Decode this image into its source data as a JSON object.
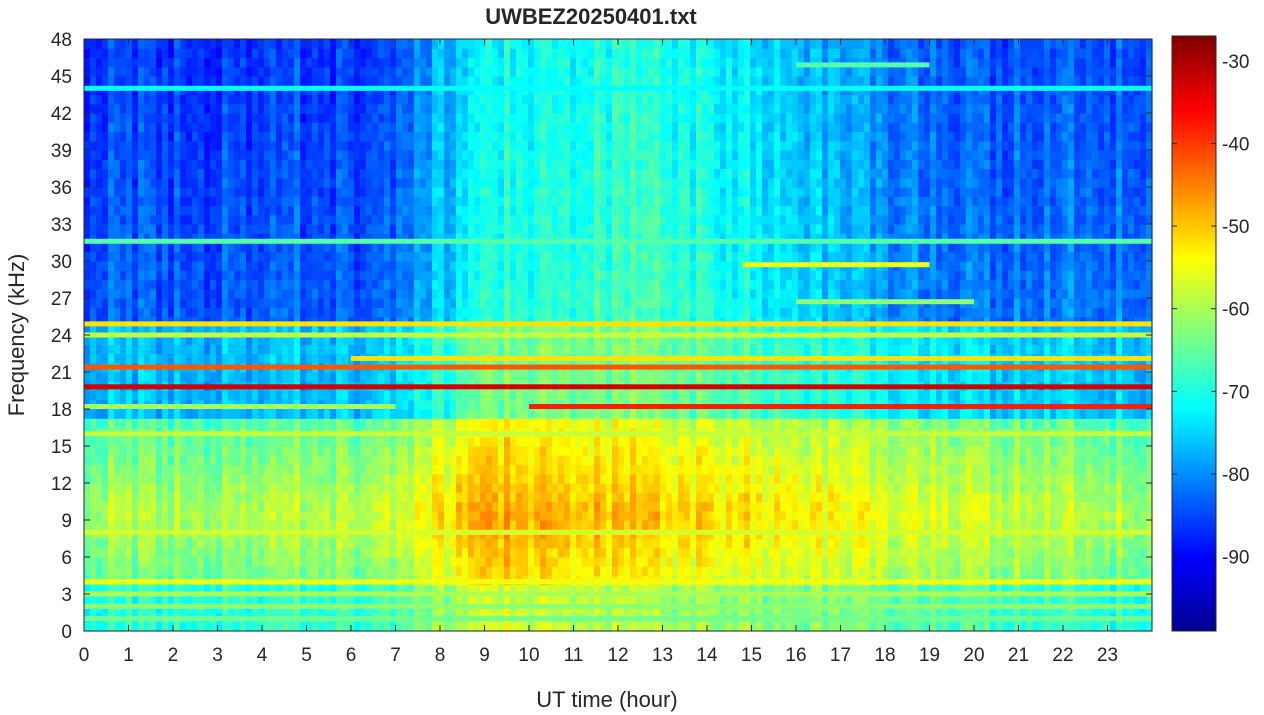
{
  "chart_data": {
    "type": "heatmap",
    "title": "UWBEZ20250401.txt",
    "xlabel": "UT time (hour)",
    "ylabel": "Frequency (kHz)",
    "xlim": [
      0,
      24
    ],
    "ylim": [
      0,
      48
    ],
    "x_ticks": [
      "0",
      "1",
      "2",
      "3",
      "4",
      "5",
      "6",
      "7",
      "8",
      "9",
      "10",
      "11",
      "12",
      "13",
      "14",
      "15",
      "16",
      "17",
      "18",
      "19",
      "20",
      "21",
      "22",
      "23"
    ],
    "y_ticks": [
      "0",
      "3",
      "6",
      "9",
      "12",
      "15",
      "18",
      "21",
      "24",
      "27",
      "30",
      "33",
      "36",
      "39",
      "42",
      "45",
      "48"
    ],
    "colorbar": {
      "colormap": "jet",
      "range": [
        -99,
        -27
      ],
      "ticks": [
        "-30",
        "-40",
        "-50",
        "-60",
        "-70",
        "-80",
        "-90"
      ]
    },
    "background_spectrum": {
      "description_hours": [
        0,
        6.7,
        9.2,
        13,
        19.3,
        24
      ],
      "high_freq_level_dB": [
        -86,
        -86,
        -72,
        -70,
        -84,
        -84
      ],
      "low_freq_level_dB": [
        -60,
        -58,
        -47,
        -50,
        -56,
        -60
      ]
    },
    "tone_lines": [
      {
        "freq_khz": 19.8,
        "start_hour": 0,
        "end_hour": 24,
        "level_dB": -33
      },
      {
        "freq_khz": 21.4,
        "start_hour": 0,
        "end_hour": 24,
        "level_dB": -42
      },
      {
        "freq_khz": 18.2,
        "start_hour": 10,
        "end_hour": 24,
        "level_dB": -38
      },
      {
        "freq_khz": 18.2,
        "start_hour": 0,
        "end_hour": 7,
        "level_dB": -60
      },
      {
        "freq_khz": 24.9,
        "start_hour": 0,
        "end_hour": 24,
        "level_dB": -52
      },
      {
        "freq_khz": 24.0,
        "start_hour": 0,
        "end_hour": 24,
        "level_dB": -58
      },
      {
        "freq_khz": 22.1,
        "start_hour": 6,
        "end_hour": 24,
        "level_dB": -52
      },
      {
        "freq_khz": 31.6,
        "start_hour": 0,
        "end_hour": 24,
        "level_dB": -66
      },
      {
        "freq_khz": 29.7,
        "start_hour": 14.8,
        "end_hour": 19,
        "level_dB": -55
      },
      {
        "freq_khz": 26.7,
        "start_hour": 16,
        "end_hour": 20,
        "level_dB": -62
      },
      {
        "freq_khz": 45.9,
        "start_hour": 16,
        "end_hour": 19,
        "level_dB": -66
      },
      {
        "freq_khz": 44.0,
        "start_hour": 0,
        "end_hour": 24,
        "level_dB": -72
      },
      {
        "freq_khz": 16.0,
        "start_hour": 0,
        "end_hour": 24,
        "level_dB": -58
      },
      {
        "freq_khz": 8.0,
        "start_hour": 0,
        "end_hour": 24,
        "level_dB": -57
      },
      {
        "freq_khz": 4.0,
        "start_hour": 0,
        "end_hour": 24,
        "level_dB": -55
      },
      {
        "freq_khz": 3.0,
        "start_hour": 0,
        "end_hour": 24,
        "level_dB": -60
      },
      {
        "freq_khz": 2.0,
        "start_hour": 0,
        "end_hour": 24,
        "level_dB": -62
      },
      {
        "freq_khz": 1.0,
        "start_hour": 0,
        "end_hour": 24,
        "level_dB": -64
      }
    ],
    "grid": false
  }
}
